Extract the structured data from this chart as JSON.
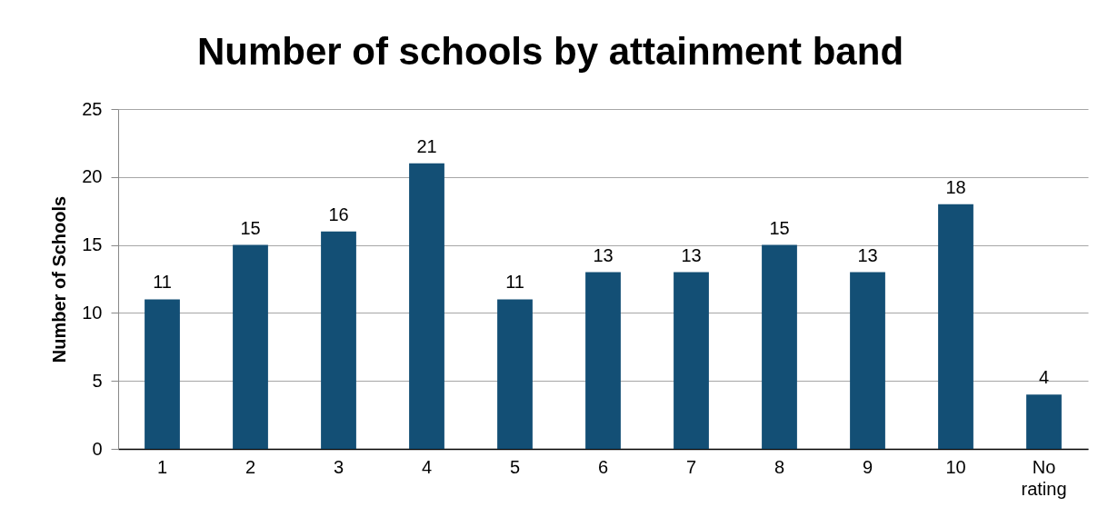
{
  "chart_data": {
    "type": "bar",
    "title": "Number of schools by attainment band",
    "ylabel": "Number of Schools",
    "categories": [
      "1",
      "2",
      "3",
      "4",
      "5",
      "6",
      "7",
      "8",
      "9",
      "10",
      "No rating"
    ],
    "values": [
      11,
      15,
      16,
      21,
      11,
      13,
      13,
      15,
      13,
      18,
      4
    ],
    "color": "#134f75",
    "ylim": [
      0,
      25
    ],
    "yticks": [
      0,
      5,
      10,
      15,
      20,
      25
    ],
    "grid": "y",
    "data_labels": true
  }
}
